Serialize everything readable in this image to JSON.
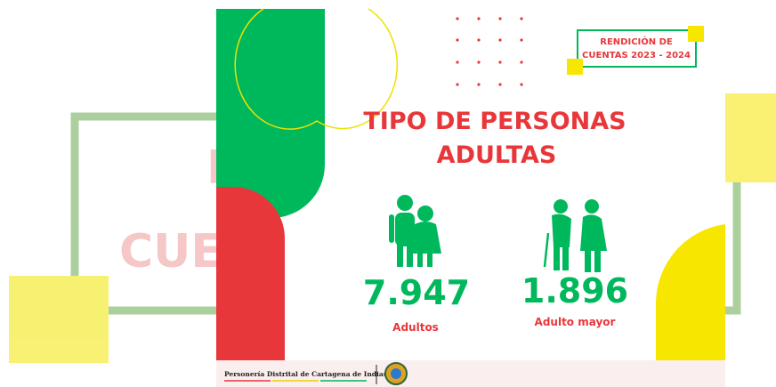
{
  "background": {
    "fragment_1": "R",
    "fragment_2": "CUE"
  },
  "badge": {
    "line1": "RENDICIÓN DE",
    "line2": "CUENTAS 2023 - 2024"
  },
  "title": {
    "line1": "TIPO DE PERSONAS",
    "line2": "ADULTAS"
  },
  "stats": [
    {
      "value": "7.947",
      "label": "Adultos"
    },
    {
      "value": "1.896",
      "label": "Adulto mayor"
    }
  ],
  "footer": {
    "text": "Personería Distrital de Cartagena de Indias"
  }
}
